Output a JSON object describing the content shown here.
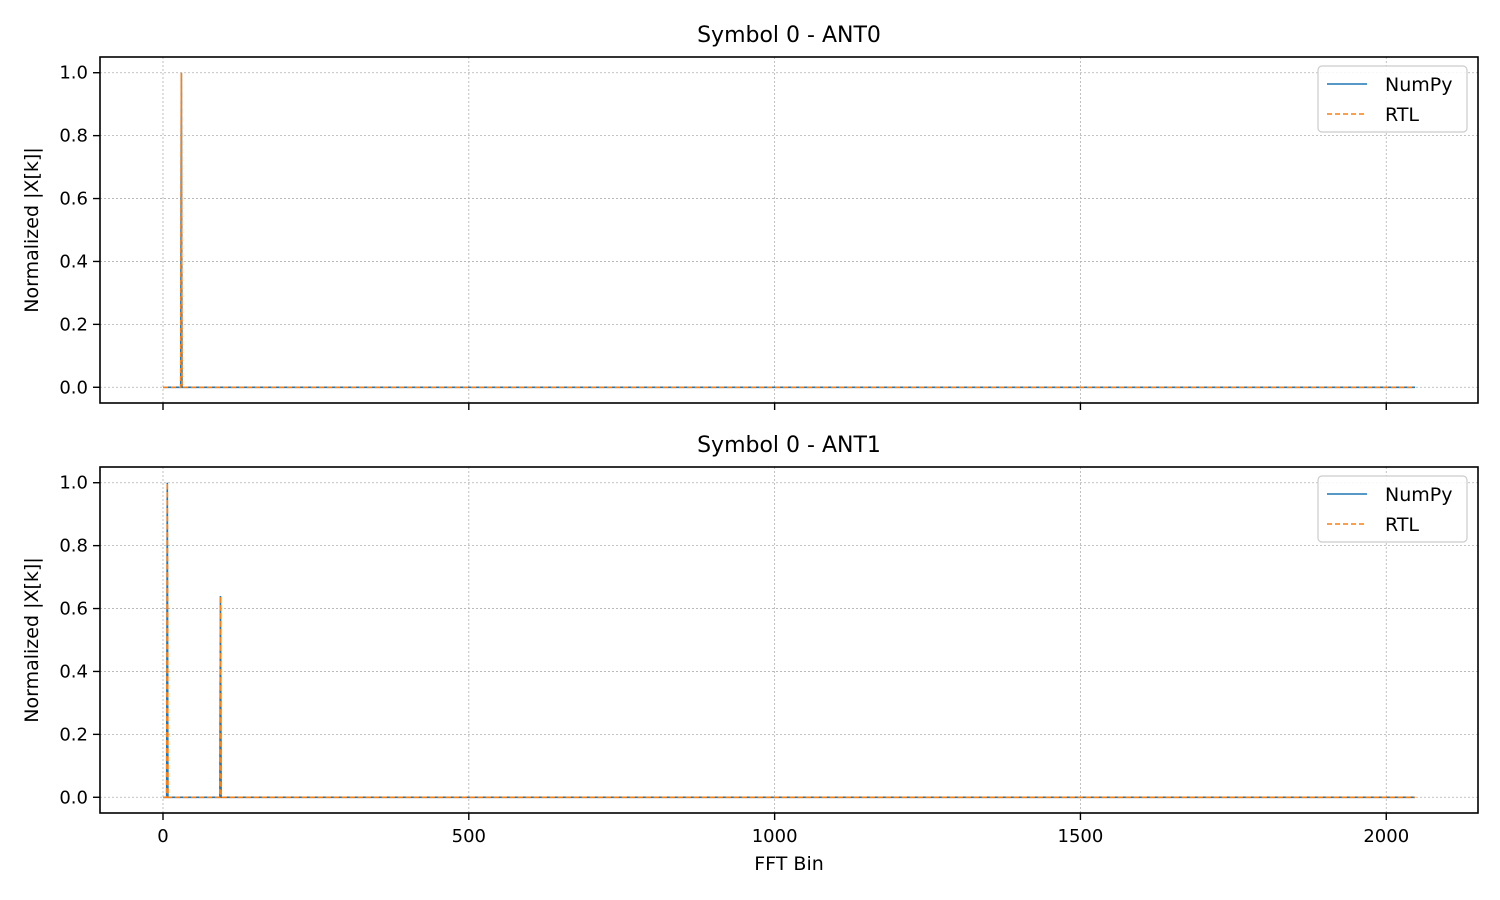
{
  "chart_data": [
    {
      "type": "line",
      "title": "Symbol 0 - ANT0",
      "xlabel": "",
      "ylabel": "Normalized |X[k]|",
      "xlim": [
        -103,
        2150
      ],
      "ylim": [
        -0.05,
        1.05
      ],
      "xticks": [
        0,
        500,
        1000,
        1500,
        2000
      ],
      "xtick_labels_shown": false,
      "yticks": [
        0.0,
        0.2,
        0.4,
        0.6,
        0.8,
        1.0
      ],
      "ytick_labels": [
        "0.0",
        "0.2",
        "0.4",
        "0.6",
        "0.8",
        "1.0"
      ],
      "grid": true,
      "legend_position": "top-right",
      "x_range": [
        0,
        2047
      ],
      "series": [
        {
          "name": "NumPy",
          "style": "solid",
          "color": "#1f77b4",
          "peaks": [
            {
              "x": 30,
              "y": 1.0
            }
          ]
        },
        {
          "name": "RTL",
          "style": "dashed",
          "color": "#ff7f0e",
          "peaks": [
            {
              "x": 30,
              "y": 1.0
            }
          ]
        }
      ]
    },
    {
      "type": "line",
      "title": "Symbol 0 - ANT1",
      "xlabel": "FFT Bin",
      "ylabel": "Normalized |X[k]|",
      "xlim": [
        -103,
        2150
      ],
      "ylim": [
        -0.05,
        1.05
      ],
      "xticks": [
        0,
        500,
        1000,
        1500,
        2000
      ],
      "xtick_labels_shown": true,
      "xtick_labels": [
        "0",
        "500",
        "1000",
        "1500",
        "2000"
      ],
      "yticks": [
        0.0,
        0.2,
        0.4,
        0.6,
        0.8,
        1.0
      ],
      "ytick_labels": [
        "0.0",
        "0.2",
        "0.4",
        "0.6",
        "0.8",
        "1.0"
      ],
      "grid": true,
      "legend_position": "top-right",
      "x_range": [
        0,
        2047
      ],
      "series": [
        {
          "name": "NumPy",
          "style": "solid",
          "color": "#1f77b4",
          "peaks": [
            {
              "x": 7,
              "y": 1.0
            },
            {
              "x": 94,
              "y": 0.64
            }
          ]
        },
        {
          "name": "RTL",
          "style": "dashed",
          "color": "#ff7f0e",
          "peaks": [
            {
              "x": 7,
              "y": 1.0
            },
            {
              "x": 94,
              "y": 0.64
            }
          ]
        }
      ]
    }
  ]
}
